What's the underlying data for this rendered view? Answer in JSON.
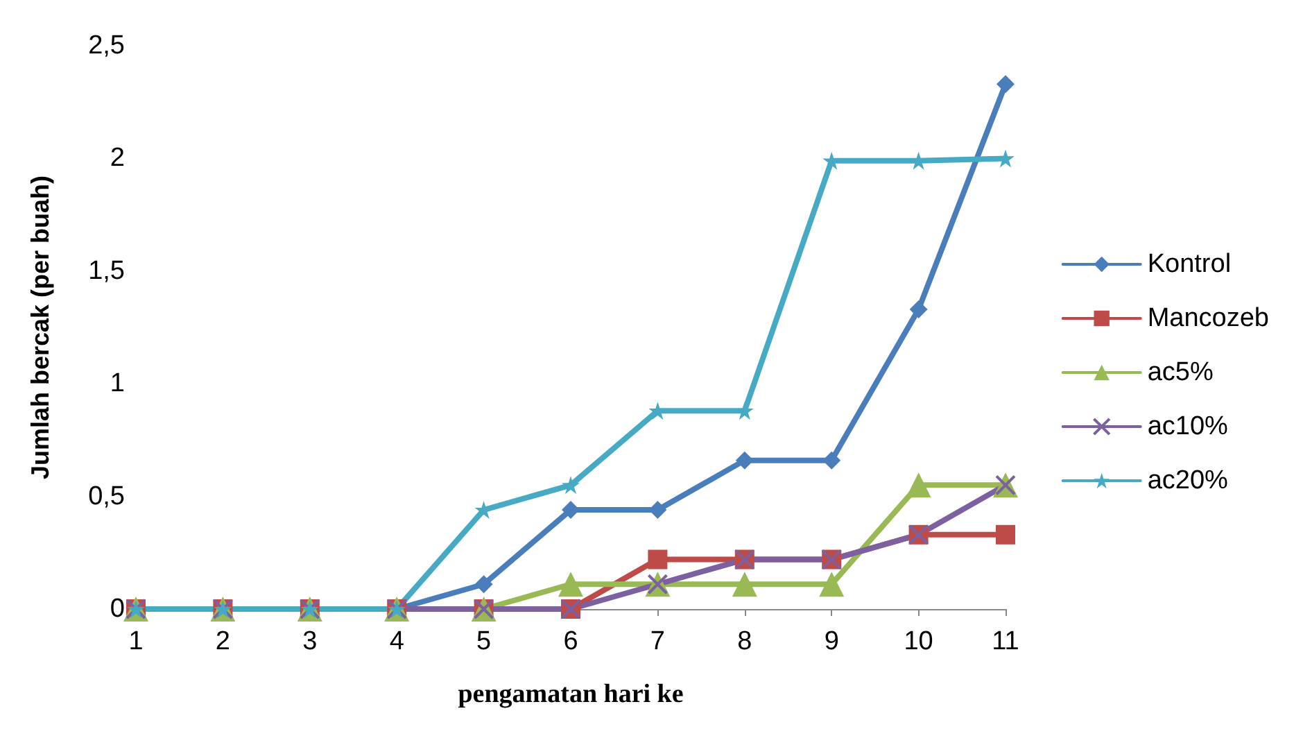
{
  "chart_data": {
    "type": "line",
    "xlabel": "pengamatan hari ke",
    "ylabel": "Jumlah bercak (per buah)",
    "categories": [
      "1",
      "2",
      "3",
      "4",
      "5",
      "6",
      "7",
      "8",
      "9",
      "10",
      "11"
    ],
    "ylim": [
      0,
      2.5
    ],
    "yticks": [
      0,
      {
        "value": 0.5,
        "label": "0,5"
      },
      1,
      {
        "value": 1.5,
        "label": "1,5"
      },
      2,
      {
        "value": 2.5,
        "label": "2,5"
      }
    ],
    "grid": false,
    "legend": "right",
    "line_style": "solid",
    "series": [
      {
        "name": "Kontrol",
        "color": "#4a7ebb",
        "marker": "diamond",
        "values": [
          0,
          0,
          0,
          0,
          0.11,
          0.44,
          0.44,
          0.66,
          0.66,
          1.33,
          2.33
        ]
      },
      {
        "name": "Mancozeb",
        "color": "#be4b48",
        "marker": "square",
        "values": [
          0,
          0,
          0,
          0,
          0,
          0,
          0.22,
          0.22,
          0.22,
          0.33,
          0.33
        ]
      },
      {
        "name": "ac5%",
        "color": "#98b954",
        "marker": "triangle",
        "values": [
          0,
          0,
          0,
          0,
          0,
          0.11,
          0.11,
          0.11,
          0.11,
          0.55,
          0.55
        ]
      },
      {
        "name": "ac10%",
        "color": "#7d60a0",
        "marker": "cross",
        "values": [
          0,
          0,
          0,
          0,
          0,
          0,
          0.11,
          0.22,
          0.22,
          0.33,
          0.55
        ]
      },
      {
        "name": "ac20%",
        "color": "#46aac5",
        "marker": "star",
        "values": [
          0,
          0,
          0,
          0,
          0.44,
          0.55,
          0.88,
          0.88,
          1.99,
          1.99,
          2
        ]
      }
    ]
  }
}
